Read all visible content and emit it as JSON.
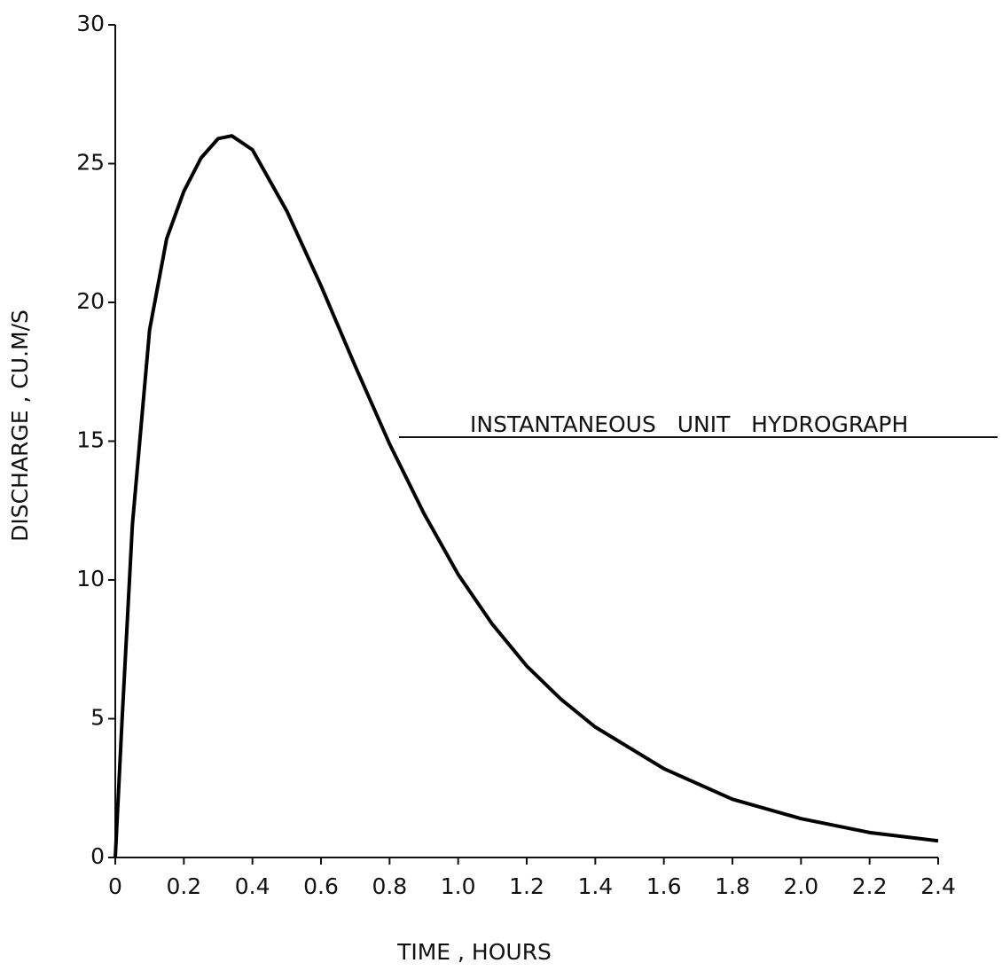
{
  "chart_data": {
    "type": "line",
    "x_label": "TIME , HOURS",
    "y_label": "DISCHARGE , CU.M/S",
    "annotation": "INSTANTANEOUS   UNIT   HYDROGRAPH",
    "x": [
      0,
      0.02,
      0.05,
      0.1,
      0.15,
      0.2,
      0.25,
      0.3,
      0.34,
      0.4,
      0.5,
      0.6,
      0.7,
      0.8,
      0.9,
      1.0,
      1.1,
      1.2,
      1.3,
      1.4,
      1.6,
      1.8,
      2.0,
      2.2,
      2.4
    ],
    "values": [
      0,
      5,
      12,
      19,
      22.3,
      24,
      25.2,
      25.9,
      26.0,
      25.5,
      23.3,
      20.6,
      17.7,
      14.9,
      12.4,
      10.2,
      8.4,
      6.9,
      5.7,
      4.7,
      3.2,
      2.1,
      1.4,
      0.9,
      0.6
    ],
    "color": "#000000",
    "xlim": [
      0,
      2.4
    ],
    "ylim": [
      0,
      30
    ],
    "xticks": [
      0,
      0.2,
      0.4,
      0.6,
      0.8,
      {
        "value": 1,
        "label": "1.0"
      },
      1.2,
      1.4,
      1.6,
      1.8,
      {
        "value": 2,
        "label": "2.0"
      },
      2.2,
      2.4
    ],
    "yticks": [
      0,
      5,
      10,
      15,
      20,
      25,
      30
    ]
  }
}
